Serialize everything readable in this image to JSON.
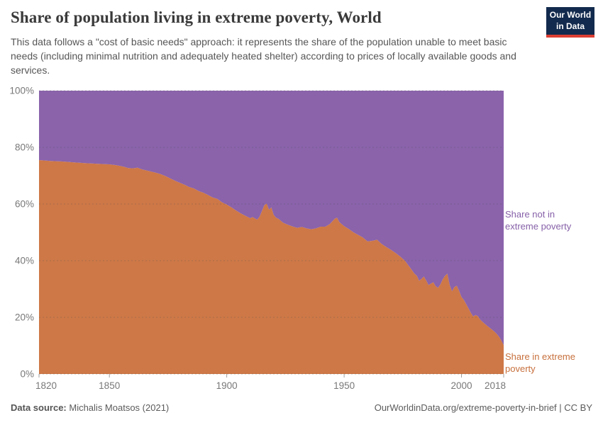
{
  "header": {
    "title": "Share of population living in extreme poverty, World",
    "subtitle": "This data follows a \"cost of basic needs\" approach: it represents the share of the population unable to meet basic needs (including minimal nutrition and adequately heated shelter) according to prices of locally available goods and services.",
    "logo_text": "Our World\nin Data"
  },
  "series_labels": {
    "not_poor": "Share not in\nextreme poverty",
    "poor": "Share in extreme\npoverty"
  },
  "footer": {
    "source_label": "Data source:",
    "source_value": " Michalis Moatsos (2021)",
    "right_text": "OurWorldinData.org/extreme-poverty-in-brief | CC BY"
  },
  "colors": {
    "poor_fill": "#ce7847",
    "not_poor_fill": "#8a63ab",
    "poor_label": "#c7703d",
    "not_poor_label": "#8660a8",
    "gridline": "rgba(80,80,80,0.3)",
    "axis_tick": "#a1a1a1",
    "logo_bg": "#122a4d",
    "logo_stripe": "#dc3e32"
  },
  "chart_data": {
    "type": "area",
    "stacked": true,
    "stack_total": 100,
    "title": "Share of population living in extreme poverty, World",
    "xlabel": "",
    "ylabel": "",
    "x_range": [
      1820,
      2018
    ],
    "y_range": [
      0,
      100
    ],
    "x_ticks": [
      1820,
      1850,
      1900,
      1950,
      2000,
      2018
    ],
    "y_ticks": [
      0,
      20,
      40,
      60,
      80,
      100
    ],
    "y_tick_suffix": "%",
    "grid": "horizontal dashed",
    "legend_position": "right-of-plot",
    "years": [
      1820,
      1825,
      1830,
      1835,
      1840,
      1845,
      1850,
      1853,
      1856,
      1858,
      1860,
      1862,
      1864,
      1866,
      1868,
      1870,
      1872,
      1874,
      1876,
      1878,
      1880,
      1882,
      1884,
      1886,
      1888,
      1890,
      1892,
      1894,
      1896,
      1898,
      1900,
      1902,
      1904,
      1906,
      1908,
      1910,
      1911,
      1912,
      1913,
      1914,
      1915,
      1916,
      1917,
      1918,
      1919,
      1920,
      1921,
      1922,
      1924,
      1926,
      1928,
      1930,
      1932,
      1934,
      1936,
      1938,
      1940,
      1942,
      1944,
      1946,
      1947,
      1948,
      1950,
      1952,
      1954,
      1956,
      1958,
      1960,
      1962,
      1964,
      1966,
      1968,
      1970,
      1972,
      1974,
      1976,
      1978,
      1980,
      1981,
      1982,
      1983,
      1984,
      1985,
      1986,
      1987,
      1988,
      1989,
      1990,
      1991,
      1992,
      1993,
      1994,
      1995,
      1996,
      1997,
      1998,
      1999,
      2000,
      2001,
      2002,
      2003,
      2004,
      2005,
      2006,
      2007,
      2008,
      2009,
      2010,
      2011,
      2012,
      2013,
      2014,
      2015,
      2016,
      2017,
      2018
    ],
    "series": [
      {
        "name": "Share in extreme poverty",
        "color": "#ce7847",
        "values": [
          75.5,
          75.2,
          75.0,
          74.7,
          74.4,
          74.2,
          74.0,
          73.7,
          73.2,
          72.7,
          72.6,
          72.8,
          72.2,
          71.8,
          71.4,
          71.0,
          70.5,
          69.8,
          69.0,
          68.2,
          67.5,
          66.8,
          66.0,
          65.5,
          64.6,
          64.0,
          63.2,
          62.3,
          61.8,
          60.6,
          59.8,
          58.8,
          57.7,
          56.7,
          55.8,
          55.0,
          55.4,
          54.9,
          54.5,
          55.6,
          57.6,
          59.6,
          60.2,
          58.0,
          58.8,
          56.2,
          55.2,
          54.8,
          53.4,
          52.7,
          52.1,
          51.6,
          51.9,
          51.4,
          51.1,
          51.4,
          52.0,
          52.0,
          53.0,
          54.8,
          55.2,
          53.6,
          52.2,
          51.2,
          50.0,
          49.1,
          48.2,
          46.8,
          47.0,
          47.4,
          45.9,
          44.8,
          43.8,
          42.7,
          41.4,
          39.9,
          37.7,
          35.4,
          34.7,
          32.9,
          33.6,
          34.4,
          33.0,
          31.4,
          31.9,
          32.4,
          31.0,
          30.4,
          31.6,
          33.4,
          34.7,
          35.4,
          31.4,
          29.2,
          30.7,
          31.2,
          29.4,
          27.2,
          26.2,
          24.7,
          23.2,
          21.6,
          20.3,
          20.8,
          20.4,
          19.2,
          18.4,
          17.7,
          17.0,
          16.3,
          15.7,
          15.0,
          14.2,
          13.2,
          11.8,
          10.2
        ]
      },
      {
        "name": "Share not in extreme poverty",
        "color": "#8a63ab",
        "derived": "stack_total minus 'Share in extreme poverty'"
      }
    ]
  }
}
